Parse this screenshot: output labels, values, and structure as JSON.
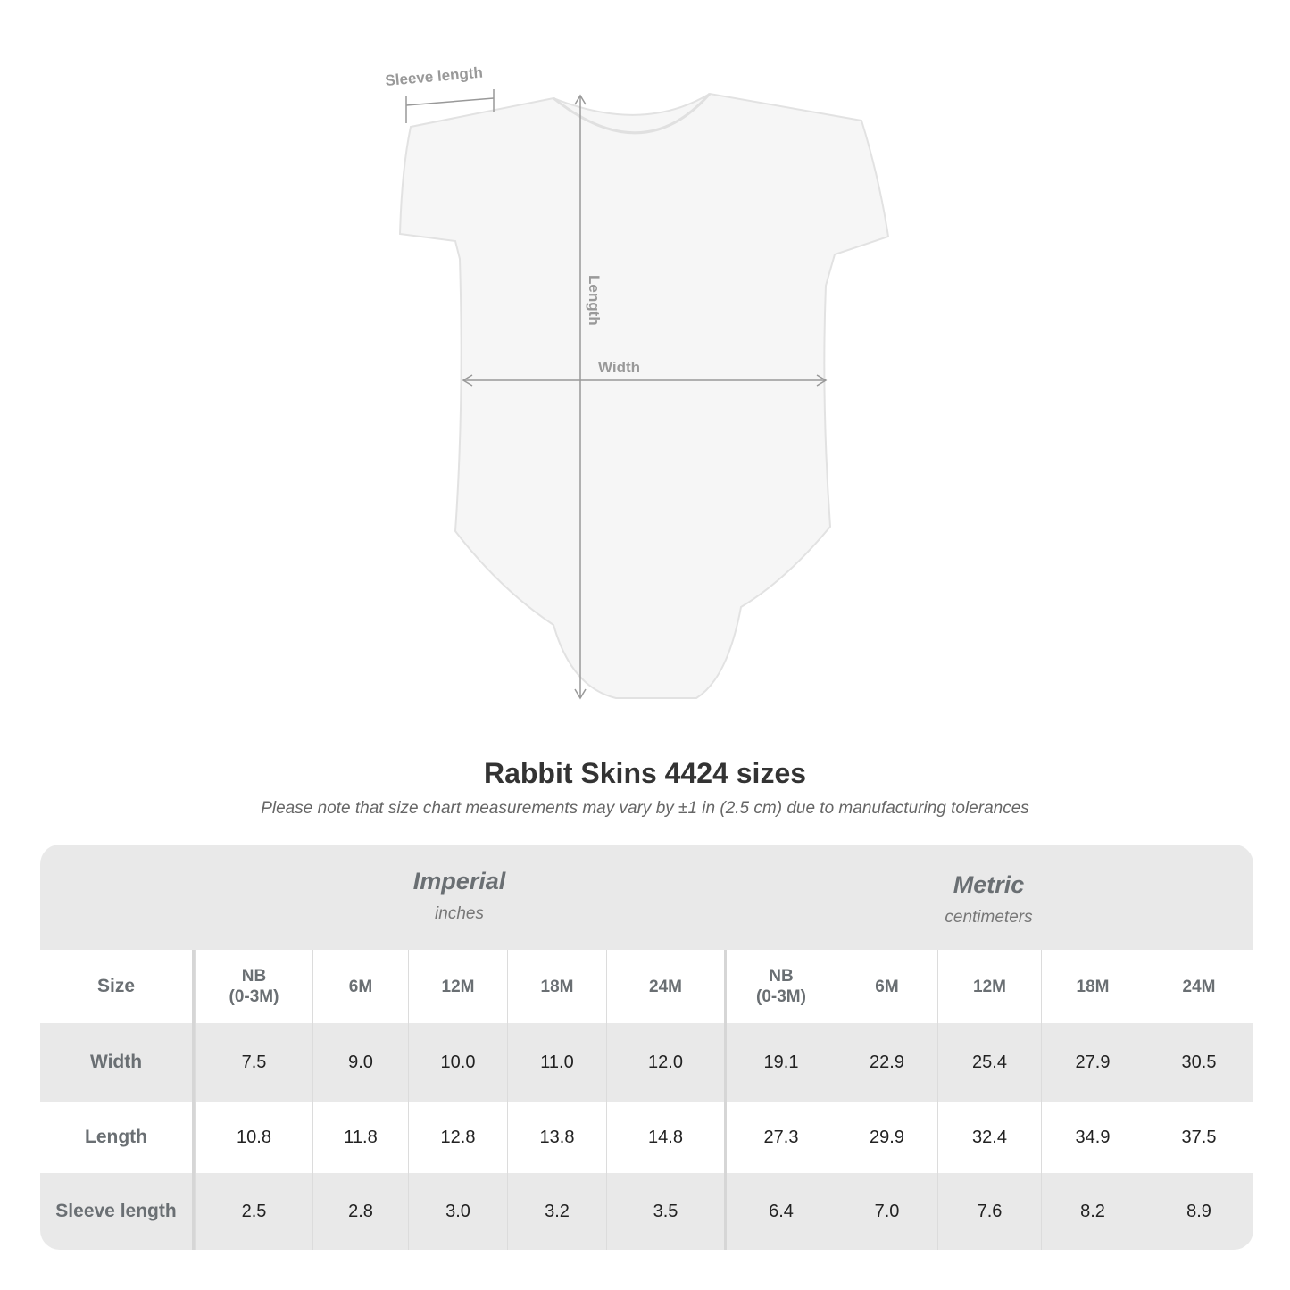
{
  "diagram": {
    "sleeve_label": "Sleeve length",
    "length_label": "Length",
    "width_label": "Width"
  },
  "title": "Rabbit Skins 4424 sizes",
  "subtitle": "Please note that size chart measurements may vary by ±1 in (2.5 cm) due to manufacturing tolerances",
  "table": {
    "imperial": {
      "name": "Imperial",
      "unit": "inches"
    },
    "metric": {
      "name": "Metric",
      "unit": "centimeters"
    },
    "size_label": "Size",
    "sizes": [
      "NB\n(0-3M)",
      "6M",
      "12M",
      "18M",
      "24M",
      "NB\n(0-3M)",
      "6M",
      "12M",
      "18M",
      "24M"
    ],
    "rows": [
      {
        "label": "Width",
        "values": [
          "7.5",
          "9.0",
          "10.0",
          "11.0",
          "12.0",
          "19.1",
          "22.9",
          "25.4",
          "27.9",
          "30.5"
        ]
      },
      {
        "label": "Length",
        "values": [
          "10.8",
          "11.8",
          "12.8",
          "13.8",
          "14.8",
          "27.3",
          "29.9",
          "32.4",
          "34.9",
          "37.5"
        ]
      },
      {
        "label": "Sleeve length",
        "values": [
          "2.5",
          "2.8",
          "3.0",
          "3.2",
          "3.5",
          "6.4",
          "7.0",
          "7.6",
          "8.2",
          "8.9"
        ]
      }
    ]
  }
}
